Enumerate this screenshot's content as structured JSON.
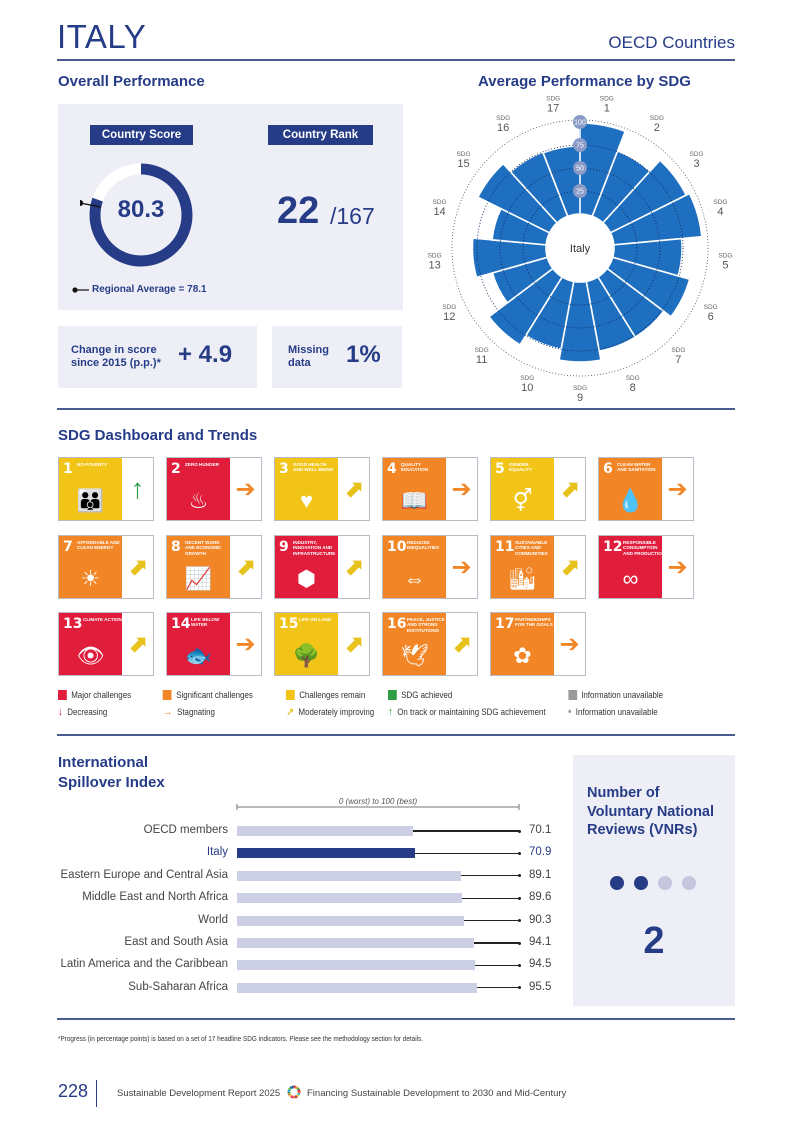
{
  "header": {
    "country": "ITALY",
    "region": "OECD Countries"
  },
  "overall": {
    "title": "Overall Performance",
    "score_label": "Country Score",
    "score": "80.3",
    "score_value": 80.3,
    "regional_average_label": "Regional Average = 78.1",
    "regional_average_value": 78.1,
    "rank_label": "Country Rank",
    "rank": "22",
    "rank_total": "/167",
    "change_label_line1": "Change in score",
    "change_label_line2": "since 2015 (p.p.)*",
    "change_value": "+ 4.9",
    "missing_label_line1": "Missing",
    "missing_label_line2": "data",
    "missing_value": "1%"
  },
  "chart_data": [
    {
      "type": "radial-bar",
      "title": "Average Performance by SDG",
      "center_label": "Italy",
      "axis_ticks": [
        "25",
        "50",
        "75",
        "100"
      ],
      "range": [
        0,
        100
      ],
      "categories": [
        "1",
        "2",
        "3",
        "4",
        "5",
        "6",
        "7",
        "8",
        "9",
        "10",
        "11",
        "12",
        "13",
        "14",
        "15",
        "16",
        "17"
      ],
      "category_prefix": "SDG",
      "values": [
        99,
        76,
        92,
        96,
        74,
        87,
        77,
        77,
        87,
        75,
        87,
        62,
        80,
        59,
        87,
        75,
        74
      ],
      "color": "#1f6fc0"
    },
    {
      "type": "bar",
      "title": "International Spillover Index",
      "subtitle": "0 (worst) to 100 (best)",
      "range": [
        0,
        100
      ],
      "categories": [
        "OECD members",
        "Italy",
        "Eastern Europe and Central Asia",
        "Middle East and North Africa",
        "World",
        "East and South Asia",
        "Latin America and the Caribbean",
        "Sub-Saharan Africa"
      ],
      "values": [
        70.1,
        70.9,
        89.1,
        89.6,
        90.3,
        94.1,
        94.5,
        95.5
      ],
      "labels": [
        "70.1",
        "70.9",
        "89.1",
        "89.6",
        "90.3",
        "94.1",
        "94.5",
        "95.5"
      ],
      "highlight": "Italy",
      "colors": {
        "default": "#cdd0e4",
        "highlight": "#263c87"
      }
    }
  ],
  "dashboard": {
    "title": "SDG Dashboard and Trends",
    "goals": [
      {
        "num": "1",
        "name": "No poverty",
        "status": "sdg_achieved_bg_yellow",
        "color": "#f2c417",
        "trend": "on_track",
        "icon": "family-icon",
        "glyph": "👪"
      },
      {
        "num": "2",
        "name": "Zero hunger",
        "color": "#e11d3c",
        "trend": "stagnating",
        "icon": "bowl-icon",
        "glyph": "♨"
      },
      {
        "num": "3",
        "name": "Good health and well-being",
        "color": "#f2c417",
        "trend": "moderately_improving",
        "icon": "heartbeat-icon",
        "glyph": "♥"
      },
      {
        "num": "4",
        "name": "Quality education",
        "color": "#f28627",
        "trend": "stagnating",
        "icon": "book-icon",
        "glyph": "📖"
      },
      {
        "num": "5",
        "name": "Gender equality",
        "color": "#f2c417",
        "trend": "moderately_improving",
        "icon": "gender-icon",
        "glyph": "⚥"
      },
      {
        "num": "6",
        "name": "Clean water and sanitation",
        "color": "#f28627",
        "trend": "stagnating",
        "icon": "water-icon",
        "glyph": "💧"
      },
      {
        "num": "7",
        "name": "Affordable and clean energy",
        "color": "#f28627",
        "trend": "moderately_improving",
        "icon": "sun-power-icon",
        "glyph": "☀"
      },
      {
        "num": "8",
        "name": "Decent work and economic growth",
        "color": "#f28627",
        "trend": "moderately_improving",
        "icon": "growth-chart-icon",
        "glyph": "📈"
      },
      {
        "num": "9",
        "name": "Industry, innovation and infrastructure",
        "color": "#e11d3c",
        "trend": "moderately_improving",
        "icon": "cubes-icon",
        "glyph": "⬢"
      },
      {
        "num": "10",
        "name": "Reduced inequalities",
        "color": "#f28627",
        "trend": "stagnating",
        "icon": "equality-arrows-icon",
        "glyph": "⇔"
      },
      {
        "num": "11",
        "name": "Sustainable cities and communities",
        "color": "#f28627",
        "trend": "moderately_improving",
        "icon": "city-icon",
        "glyph": "🏙"
      },
      {
        "num": "12",
        "name": "Responsible consumption and production",
        "color": "#e11d3c",
        "trend": "stagnating",
        "icon": "infinity-icon",
        "glyph": "∞"
      },
      {
        "num": "13",
        "name": "Climate action",
        "color": "#e11d3c",
        "trend": "moderately_improving",
        "icon": "eye-globe-icon",
        "glyph": "👁"
      },
      {
        "num": "14",
        "name": "Life below water",
        "color": "#e11d3c",
        "trend": "stagnating",
        "icon": "fish-icon",
        "glyph": "🐟"
      },
      {
        "num": "15",
        "name": "Life on land",
        "color": "#f2c417",
        "trend": "moderately_improving",
        "icon": "tree-icon",
        "glyph": "🌳"
      },
      {
        "num": "16",
        "name": "Peace, justice and strong institutions",
        "color": "#f28627",
        "trend": "moderately_improving",
        "icon": "dove-icon",
        "glyph": "🕊"
      },
      {
        "num": "17",
        "name": "Partnerships for the goals",
        "color": "#f28627",
        "trend": "stagnating",
        "icon": "flower-rings-icon",
        "glyph": "✿"
      }
    ],
    "legend_status": [
      {
        "label": "Major challenges",
        "color": "#e11d3c"
      },
      {
        "label": "Significant challenges",
        "color": "#f28627"
      },
      {
        "label": "Challenges remain",
        "color": "#f2c417"
      },
      {
        "label": "SDG achieved",
        "color": "#2e9e46"
      },
      {
        "label": "Information unavailable",
        "color": "#9a9a9a"
      }
    ],
    "legend_trend": [
      {
        "label": "Decreasing",
        "symbol": "↓",
        "color": "#d11f37"
      },
      {
        "label": "Stagnating",
        "symbol": "→",
        "color": "#f28627"
      },
      {
        "label": "Moderately improving",
        "symbol": "↗",
        "color": "#e7c21b"
      },
      {
        "label": "On track or maintaining SDG achievement",
        "symbol": "↑",
        "color": "#2e9e46"
      },
      {
        "label": "Information unavailable",
        "symbol": "•",
        "color": "#9a9a9a"
      }
    ]
  },
  "spillover": {
    "title_line1": "International",
    "title_line2": "Spillover Index"
  },
  "vnr": {
    "title_line1": "Number of",
    "title_line2": "Voluntary National",
    "title_line3": "Reviews (VNRs)",
    "count": "2",
    "filled_dots": 2,
    "total_dots": 4
  },
  "footer": {
    "footnote": "*Progress (in percentage points) is based on a set of 17 headline SDG indicators. Please see the methodology section for details.",
    "page_number": "228",
    "report": "Sustainable Development Report 2025",
    "subtitle": "Financing Sustainable Development to 2030 and Mid-Century"
  }
}
